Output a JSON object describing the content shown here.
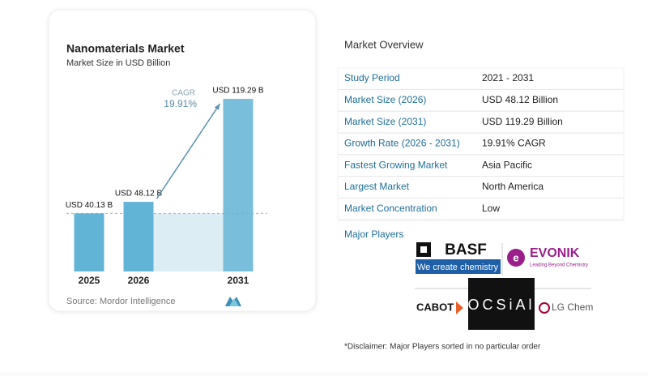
{
  "chart_data": {
    "type": "bar",
    "title": "Nanomaterials Market",
    "subtitle": "Market Size in USD Billion",
    "categories": [
      "2025",
      "2026",
      "2031"
    ],
    "values": [
      40.13,
      48.12,
      119.29
    ],
    "value_labels": [
      "USD 40.13 B",
      "USD 48.12 B",
      "USD 119.29 B"
    ],
    "color": "#62b4d6",
    "annotations": [
      "CAGR",
      "19.91%"
    ],
    "source": "Source: Mordor Intelligence"
  },
  "overview": {
    "title": "Market Overview",
    "rows": [
      [
        "Study Period",
        "2021 - 2031"
      ],
      [
        "Market Size (2026)",
        "USD 48.12 Billion"
      ],
      [
        "Market Size (2031)",
        "USD 119.29 Billion"
      ],
      [
        "Growth Rate (2026 - 2031)",
        "19.91% CAGR"
      ],
      [
        "Fastest Growing Market",
        "Asia Pacific"
      ],
      [
        "Largest Market",
        "North America"
      ],
      [
        "Market Concentration",
        "Low"
      ]
    ]
  },
  "major_players": {
    "label": "Major Players",
    "players": [
      {
        "name": "BASF",
        "tagline": "We create chemistry"
      },
      {
        "name": "EVONIK",
        "tagline": "Leading Beyond Chemistry"
      },
      {
        "name": "CABOT"
      },
      {
        "name": "OCSiAl"
      },
      {
        "name": "LG Chem"
      }
    ]
  },
  "disclaimer": "*Disclaimer: Major Players sorted in no particular order"
}
